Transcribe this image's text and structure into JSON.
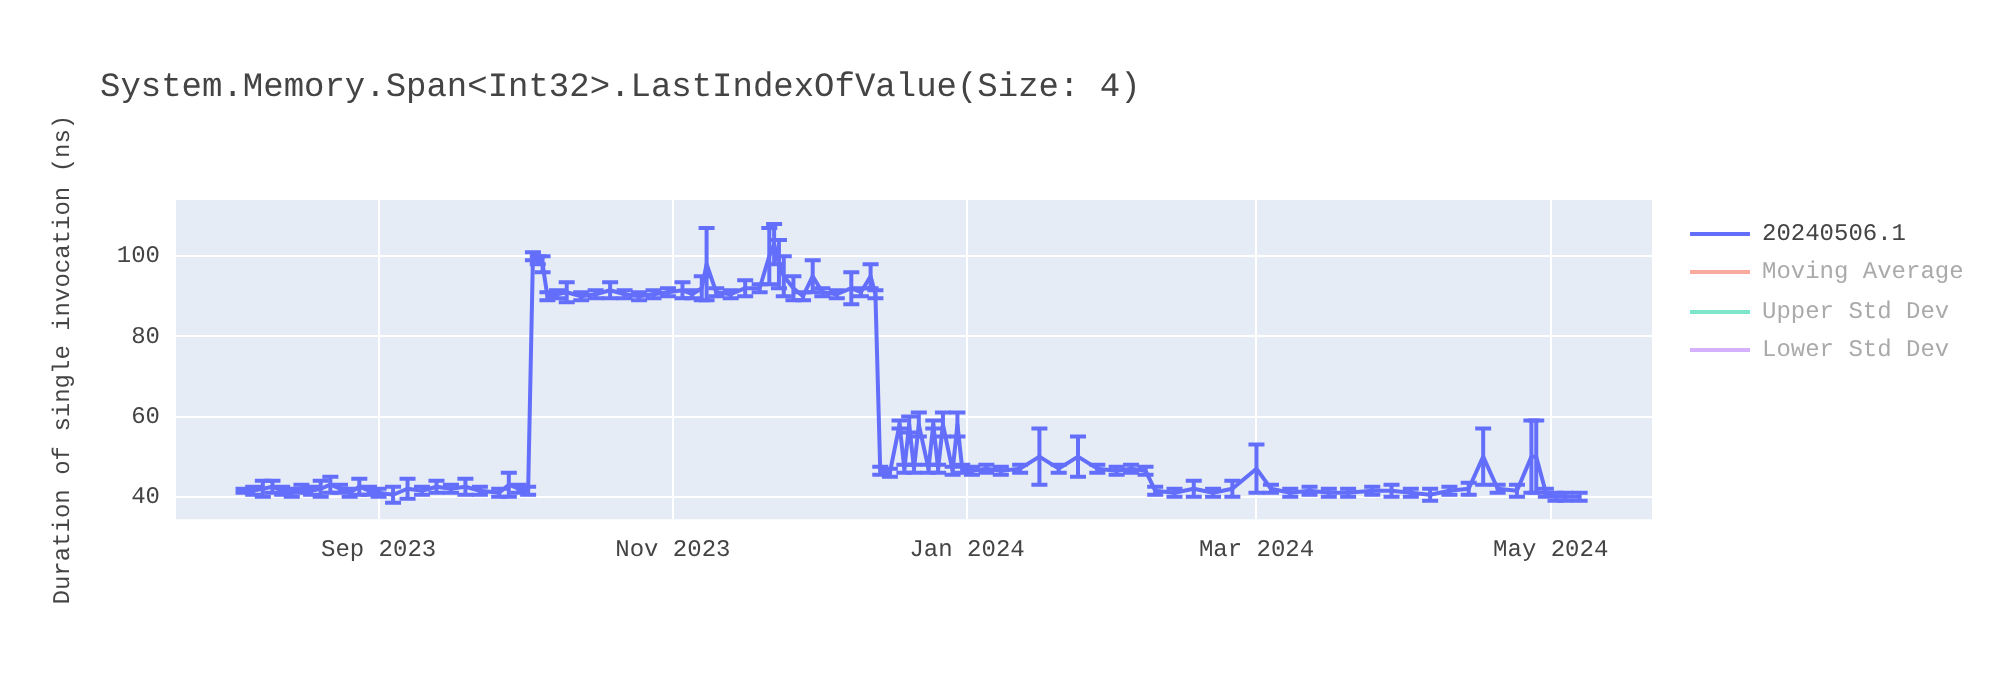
{
  "chart_data": {
    "type": "line",
    "title": "System.Memory.Span<Int32>.LastIndexOfValue(Size: 4)",
    "ylabel": "Duration of single invocation (ns)",
    "x": [
      "2023-08-04",
      "2023-08-06",
      "2023-08-08",
      "2023-08-10",
      "2023-08-12",
      "2023-08-14",
      "2023-08-16",
      "2023-08-18",
      "2023-08-20",
      "2023-08-22",
      "2023-08-24",
      "2023-08-26",
      "2023-08-28",
      "2023-08-30",
      "2023-09-01",
      "2023-09-04",
      "2023-09-07",
      "2023-09-10",
      "2023-09-13",
      "2023-09-16",
      "2023-09-19",
      "2023-09-22",
      "2023-09-26",
      "2023-09-28",
      "2023-09-30",
      "2023-10-02",
      "2023-10-03",
      "2023-10-04",
      "2023-10-05",
      "2023-10-06",
      "2023-10-08",
      "2023-10-10",
      "2023-10-13",
      "2023-10-16",
      "2023-10-19",
      "2023-10-22",
      "2023-10-25",
      "2023-10-28",
      "2023-10-31",
      "2023-11-03",
      "2023-11-05",
      "2023-11-07",
      "2023-11-08",
      "2023-11-10",
      "2023-11-13",
      "2023-11-16",
      "2023-11-19",
      "2023-11-21",
      "2023-11-22",
      "2023-11-23",
      "2023-11-24",
      "2023-11-26",
      "2023-11-28",
      "2023-11-30",
      "2023-12-02",
      "2023-12-05",
      "2023-12-08",
      "2023-12-10",
      "2023-12-12",
      "2023-12-13",
      "2023-12-14",
      "2023-12-16",
      "2023-12-18",
      "2023-12-19",
      "2023-12-20",
      "2023-12-21",
      "2023-12-22",
      "2023-12-24",
      "2023-12-25",
      "2023-12-26",
      "2023-12-27",
      "2023-12-29",
      "2023-12-30",
      "2023-12-31",
      "2024-01-02",
      "2024-01-05",
      "2024-01-08",
      "2024-01-12",
      "2024-01-16",
      "2024-01-20",
      "2024-01-24",
      "2024-01-28",
      "2024-02-01",
      "2024-02-04",
      "2024-02-07",
      "2024-02-09",
      "2024-02-13",
      "2024-02-17",
      "2024-02-21",
      "2024-02-25",
      "2024-03-01",
      "2024-03-04",
      "2024-03-08",
      "2024-03-12",
      "2024-03-16",
      "2024-03-20",
      "2024-03-25",
      "2024-03-29",
      "2024-04-02",
      "2024-04-06",
      "2024-04-10",
      "2024-04-14",
      "2024-04-17",
      "2024-04-20",
      "2024-04-24",
      "2024-04-27",
      "2024-04-28",
      "2024-04-30",
      "2024-05-02",
      "2024-05-04",
      "2024-05-07"
    ],
    "series": [
      {
        "name": "20240506.1",
        "color": "#636efa",
        "values": [
          41.5,
          41.5,
          42,
          42.5,
          41.5,
          41,
          42,
          41.5,
          42,
          43,
          42,
          41,
          42.5,
          41.5,
          41,
          40.5,
          42,
          41.5,
          42.5,
          42,
          42.5,
          41.5,
          41,
          43,
          42,
          41.5,
          100,
          99,
          98,
          90,
          90.5,
          91,
          90,
          90.5,
          91.5,
          90.5,
          90,
          90.5,
          91,
          91.5,
          90.5,
          92,
          98,
          91,
          90.5,
          92,
          92,
          100,
          103,
          98,
          95,
          92,
          90,
          95,
          91,
          90.5,
          92,
          91,
          95,
          90.5,
          46.5,
          46,
          58,
          47,
          58,
          47,
          58,
          47,
          58,
          47,
          58,
          46.5,
          58,
          47,
          46.5,
          47,
          46.5,
          47,
          50,
          47,
          50,
          47,
          46.5,
          47,
          46.5,
          41.5,
          41,
          42,
          41,
          42,
          47,
          42,
          41,
          41.5,
          41,
          41,
          41.5,
          41.5,
          41,
          40.5,
          41.5,
          42,
          50,
          42,
          41.5,
          50,
          50,
          41,
          40,
          40,
          40
        ],
        "errors": [
          0.5,
          1,
          2,
          1.5,
          1,
          1,
          1,
          1,
          2,
          2,
          1,
          1,
          2,
          1,
          1,
          2,
          2.5,
          1,
          1.5,
          1,
          2,
          1,
          1,
          3,
          1,
          1,
          1,
          1,
          2,
          1,
          1,
          2.5,
          1,
          1,
          2,
          1,
          1,
          1,
          1,
          2,
          1,
          3,
          9,
          1,
          1,
          2,
          1,
          7,
          5,
          6,
          5,
          3,
          1,
          4,
          1,
          1,
          4,
          1,
          3,
          1,
          1,
          1,
          1,
          1,
          2,
          1,
          3,
          1,
          1,
          1,
          3,
          1,
          3,
          1,
          1,
          1,
          1,
          1,
          7,
          1,
          5,
          1,
          1,
          1,
          1,
          1,
          1,
          2,
          1,
          2,
          6,
          1,
          1,
          1,
          1,
          1,
          1,
          1.5,
          1,
          1.5,
          1,
          1.5,
          7,
          1,
          1.5,
          9,
          9,
          1,
          1,
          1,
          1
        ]
      },
      {
        "name": "Moving Average",
        "color": "#f7aa9d",
        "values": [
          null,
          null,
          null,
          null,
          null,
          null,
          null,
          null,
          null,
          null,
          null,
          null,
          null,
          null,
          null,
          null,
          null,
          null,
          null,
          null,
          null,
          null,
          null,
          null,
          null,
          null,
          null,
          null,
          null,
          null,
          null,
          null,
          null,
          null,
          null,
          null,
          null,
          null,
          null,
          null,
          null,
          null,
          null,
          null,
          null,
          null,
          null,
          null,
          null,
          null,
          null,
          null,
          null,
          null,
          null,
          null,
          null,
          null,
          null,
          null,
          null,
          null,
          null,
          null,
          null,
          null,
          null,
          null,
          null,
          null,
          null,
          null,
          null,
          null,
          null,
          null,
          null,
          null,
          null,
          null,
          null,
          null,
          null,
          null,
          null,
          null,
          null,
          null,
          null,
          null,
          null,
          null,
          null,
          null,
          null,
          null,
          null,
          null,
          null,
          null,
          null,
          null,
          null,
          null,
          null,
          null,
          null,
          null,
          null,
          null,
          null
        ]
      },
      {
        "name": "Upper Std Dev",
        "color": "#80e6cb",
        "values": [
          null,
          null,
          null,
          null,
          null,
          null,
          null,
          null,
          null,
          null,
          null,
          null,
          null,
          null,
          null,
          null,
          null,
          null,
          null,
          null,
          null,
          null,
          null,
          null,
          null,
          null,
          null,
          null,
          null,
          null,
          null,
          null,
          null,
          null,
          null,
          null,
          null,
          null,
          null,
          null,
          null,
          null,
          null,
          null,
          null,
          null,
          null,
          null,
          null,
          null,
          null,
          null,
          null,
          null,
          null,
          null,
          null,
          null,
          null,
          null,
          null,
          null,
          null,
          null,
          null,
          null,
          null,
          null,
          null,
          null,
          null,
          null,
          null,
          null,
          null,
          null,
          null,
          null,
          null,
          null,
          null,
          null,
          null,
          null,
          null,
          null,
          null,
          null,
          null,
          null,
          null,
          null,
          null,
          null,
          null,
          null,
          null,
          null,
          null,
          null,
          null,
          null,
          null,
          null,
          null,
          null,
          null,
          null,
          null,
          null,
          null
        ]
      },
      {
        "name": "Lower Std Dev",
        "color": "#d5b1fd",
        "values": [
          null,
          null,
          null,
          null,
          null,
          null,
          null,
          null,
          null,
          null,
          null,
          null,
          null,
          null,
          null,
          null,
          null,
          null,
          null,
          null,
          null,
          null,
          null,
          null,
          null,
          null,
          null,
          null,
          null,
          null,
          null,
          null,
          null,
          null,
          null,
          null,
          null,
          null,
          null,
          null,
          null,
          null,
          null,
          null,
          null,
          null,
          null,
          null,
          null,
          null,
          null,
          null,
          null,
          null,
          null,
          null,
          null,
          null,
          null,
          null,
          null,
          null,
          null,
          null,
          null,
          null,
          null,
          null,
          null,
          null,
          null,
          null,
          null,
          null,
          null,
          null,
          null,
          null,
          null,
          null,
          null,
          null,
          null,
          null,
          null,
          null,
          null,
          null,
          null,
          null,
          null,
          null,
          null,
          null,
          null,
          null,
          null,
          null,
          null,
          null,
          null,
          null,
          null,
          null,
          null,
          null,
          null,
          null,
          null,
          null,
          null
        ]
      }
    ],
    "xlim": [
      "2023-07-21",
      "2024-05-22"
    ],
    "xticks": [
      {
        "value": "2023-09-01",
        "label": "Sep 2023"
      },
      {
        "value": "2023-11-01",
        "label": "Nov 2023"
      },
      {
        "value": "2024-01-01",
        "label": "Jan 2024"
      },
      {
        "value": "2024-03-01",
        "label": "Mar 2024"
      },
      {
        "value": "2024-05-01",
        "label": "May 2024"
      }
    ],
    "ylim": [
      34.4,
      114
    ],
    "yticks": [
      40,
      60,
      80,
      100
    ],
    "grid": true,
    "legend": "right",
    "marker": "none"
  }
}
